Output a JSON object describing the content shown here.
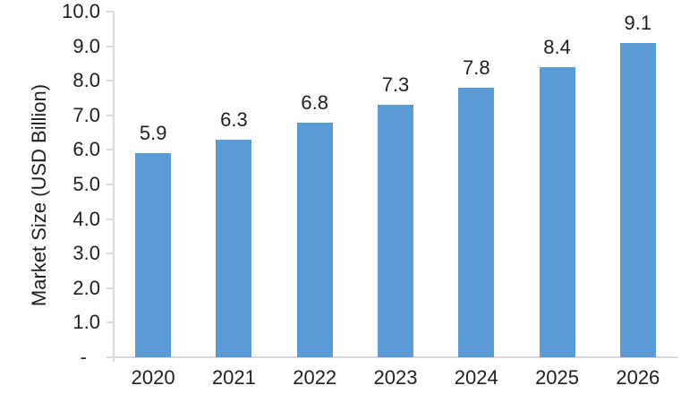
{
  "chart_data": {
    "type": "bar",
    "title": "",
    "xlabel": "",
    "ylabel": "Market Size (USD Billion)",
    "categories": [
      "2020",
      "2021",
      "2022",
      "2023",
      "2024",
      "2025",
      "2026"
    ],
    "values": [
      5.9,
      6.3,
      6.8,
      7.3,
      7.8,
      8.4,
      9.1
    ],
    "data_labels": [
      "5.9",
      "6.3",
      "6.8",
      "7.3",
      "7.8",
      "8.4",
      "9.1"
    ],
    "ylim": [
      0,
      10
    ],
    "y_ticks": [
      {
        "label": "10.0",
        "value": 10
      },
      {
        "label": "9.0",
        "value": 9
      },
      {
        "label": "8.0",
        "value": 8
      },
      {
        "label": "7.0",
        "value": 7
      },
      {
        "label": "6.0",
        "value": 6
      },
      {
        "label": "5.0",
        "value": 5
      },
      {
        "label": "4.0",
        "value": 4
      },
      {
        "label": "3.0",
        "value": 3
      },
      {
        "label": "2.0",
        "value": 2
      },
      {
        "label": "1.0",
        "value": 1
      },
      {
        "label": "-",
        "value": 0
      }
    ],
    "grid": false,
    "legend": "none",
    "bar_color": "#5B9BD5",
    "axis_color": "#D9D9D9",
    "text_color": "#1F1F1F"
  }
}
